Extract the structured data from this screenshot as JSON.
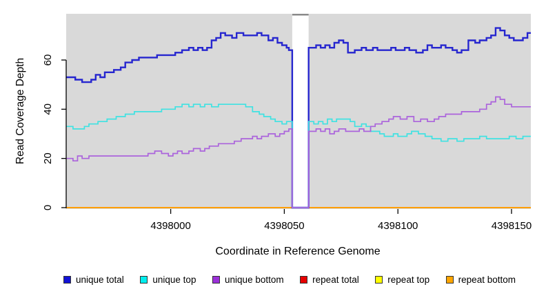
{
  "labels": {
    "ylabel": "Read Coverage Depth",
    "xlabel": "Coordinate in Reference Genome"
  },
  "legend": {
    "items": [
      {
        "label": "unique total",
        "color": "#1212D6"
      },
      {
        "label": "unique top",
        "color": "#00EEEE"
      },
      {
        "label": "unique bottom",
        "color": "#9B30D9"
      },
      {
        "label": "repeat total",
        "color": "#E60000"
      },
      {
        "label": "repeat top",
        "color": "#FFFF00"
      },
      {
        "label": "repeat bottom",
        "color": "#FFA500"
      }
    ]
  },
  "chart_data": {
    "type": "line",
    "subtype": "step-after",
    "title": "",
    "xlabel": "Coordinate in Reference Genome",
    "ylabel": "Read Coverage Depth",
    "xlim": [
      4397954,
      4398158.5
    ],
    "ylim": [
      0,
      79
    ],
    "xticks": [
      "4398000",
      "4398050",
      "4398100",
      "4398150"
    ],
    "xtick_values": [
      4398000,
      4398050,
      4398100,
      4398150
    ],
    "yticks": [
      "0",
      "20",
      "40",
      "60"
    ],
    "ytick_values": [
      0,
      20,
      40,
      60
    ],
    "panel_bg": "#D9D9D9",
    "grid": false,
    "legend_position": "bottom",
    "gap_region": {
      "start": 4398053.5,
      "end": 4398060.7,
      "fill": "#FFFFFF",
      "top_border": "#8A8A8A"
    },
    "series": [
      {
        "name": "repeat total",
        "color": "#DD0000",
        "width": 2,
        "points": [
          [
            4397954,
            0
          ]
        ]
      },
      {
        "name": "repeat top",
        "color": "#FFEE00",
        "width": 2,
        "points": [
          [
            4397954,
            0
          ]
        ]
      },
      {
        "name": "repeat bottom",
        "color": "#FF9E00",
        "width": 2.1,
        "points": [
          [
            4397954,
            0
          ]
        ]
      },
      {
        "name": "unique total",
        "color": "#2626CF",
        "width": 2.4,
        "points": [
          [
            4397954,
            53
          ],
          [
            4397958,
            52
          ],
          [
            4397961,
            51
          ],
          [
            4397965,
            52
          ],
          [
            4397967,
            54
          ],
          [
            4397969,
            53
          ],
          [
            4397971,
            55
          ],
          [
            4397975,
            56
          ],
          [
            4397978,
            57
          ],
          [
            4397980,
            59
          ],
          [
            4397983,
            60
          ],
          [
            4397986,
            61
          ],
          [
            4397994,
            62
          ],
          [
            4398002,
            63
          ],
          [
            4398005,
            64
          ],
          [
            4398008,
            65
          ],
          [
            4398010,
            64
          ],
          [
            4398012,
            65
          ],
          [
            4398014,
            64
          ],
          [
            4398016,
            65
          ],
          [
            4398018,
            68
          ],
          [
            4398020,
            69
          ],
          [
            4398022,
            71
          ],
          [
            4398024,
            70
          ],
          [
            4398027,
            69
          ],
          [
            4398029,
            71
          ],
          [
            4398032,
            70
          ],
          [
            4398038,
            71
          ],
          [
            4398040,
            70
          ],
          [
            4398043,
            68
          ],
          [
            4398045,
            69
          ],
          [
            4398047,
            67
          ],
          [
            4398049,
            66
          ],
          [
            4398051,
            65
          ],
          [
            4398052,
            64
          ],
          [
            4398053.5,
            0
          ],
          [
            4398060.7,
            65
          ],
          [
            4398064,
            66
          ],
          [
            4398066,
            65
          ],
          [
            4398068,
            66
          ],
          [
            4398070,
            65
          ],
          [
            4398072,
            67
          ],
          [
            4398074,
            68
          ],
          [
            4398076,
            67
          ],
          [
            4398078,
            63
          ],
          [
            4398081,
            64
          ],
          [
            4398084,
            65
          ],
          [
            4398086,
            64
          ],
          [
            4398089,
            65
          ],
          [
            4398091,
            64
          ],
          [
            4398097,
            65
          ],
          [
            4398099,
            64
          ],
          [
            4398103,
            65
          ],
          [
            4398105,
            64
          ],
          [
            4398108,
            63
          ],
          [
            4398111,
            64
          ],
          [
            4398113,
            66
          ],
          [
            4398115,
            65
          ],
          [
            4398119,
            66
          ],
          [
            4398121,
            65
          ],
          [
            4398124,
            64
          ],
          [
            4398126,
            63
          ],
          [
            4398128,
            64
          ],
          [
            4398131,
            68
          ],
          [
            4398134,
            67
          ],
          [
            4398136,
            68
          ],
          [
            4398139,
            69
          ],
          [
            4398141,
            70
          ],
          [
            4398143,
            73
          ],
          [
            4398145,
            72
          ],
          [
            4398147,
            70
          ],
          [
            4398149,
            69
          ],
          [
            4398151,
            68
          ],
          [
            4398155,
            69
          ],
          [
            4398157,
            71
          ]
        ]
      },
      {
        "name": "unique top",
        "color": "#3FE2E2",
        "width": 1.7,
        "points": [
          [
            4397954,
            33
          ],
          [
            4397957,
            32
          ],
          [
            4397962,
            33
          ],
          [
            4397964,
            34
          ],
          [
            4397968,
            35
          ],
          [
            4397972,
            36
          ],
          [
            4397976,
            37
          ],
          [
            4397980,
            38
          ],
          [
            4397984,
            39
          ],
          [
            4397996,
            40
          ],
          [
            4398002,
            41
          ],
          [
            4398005,
            42
          ],
          [
            4398008,
            41
          ],
          [
            4398010,
            42
          ],
          [
            4398013,
            41
          ],
          [
            4398015,
            42
          ],
          [
            4398018,
            41
          ],
          [
            4398021,
            42
          ],
          [
            4398033,
            41
          ],
          [
            4398036,
            39
          ],
          [
            4398039,
            38
          ],
          [
            4398041,
            37
          ],
          [
            4398044,
            36
          ],
          [
            4398046,
            35
          ],
          [
            4398049,
            34
          ],
          [
            4398051,
            35
          ],
          [
            4398053.5,
            0
          ],
          [
            4398060.7,
            35
          ],
          [
            4398063,
            34
          ],
          [
            4398065,
            35
          ],
          [
            4398067,
            34
          ],
          [
            4398069,
            36
          ],
          [
            4398071,
            35
          ],
          [
            4398073,
            36
          ],
          [
            4398079,
            35
          ],
          [
            4398081,
            33
          ],
          [
            4398084,
            34
          ],
          [
            4398086,
            33
          ],
          [
            4398088,
            31
          ],
          [
            4398092,
            30
          ],
          [
            4398094,
            29
          ],
          [
            4398098,
            30
          ],
          [
            4398100,
            29
          ],
          [
            4398104,
            30
          ],
          [
            4398106,
            31
          ],
          [
            4398109,
            30
          ],
          [
            4398112,
            29
          ],
          [
            4398115,
            28
          ],
          [
            4398119,
            27
          ],
          [
            4398122,
            28
          ],
          [
            4398126,
            27
          ],
          [
            4398129,
            28
          ],
          [
            4398136,
            29
          ],
          [
            4398139,
            28
          ],
          [
            4398149,
            29
          ],
          [
            4398152,
            28
          ],
          [
            4398155,
            29
          ]
        ]
      },
      {
        "name": "unique bottom",
        "color": "#AB63DC",
        "width": 1.7,
        "points": [
          [
            4397954,
            20
          ],
          [
            4397957,
            19
          ],
          [
            4397959,
            21
          ],
          [
            4397961,
            20
          ],
          [
            4397964,
            21
          ],
          [
            4397990,
            22
          ],
          [
            4397993,
            23
          ],
          [
            4397996,
            22
          ],
          [
            4397999,
            21
          ],
          [
            4398001,
            22
          ],
          [
            4398003,
            23
          ],
          [
            4398005,
            22
          ],
          [
            4398008,
            23
          ],
          [
            4398010,
            24
          ],
          [
            4398013,
            23
          ],
          [
            4398015,
            24
          ],
          [
            4398017,
            25
          ],
          [
            4398021,
            26
          ],
          [
            4398028,
            27
          ],
          [
            4398031,
            28
          ],
          [
            4398036,
            29
          ],
          [
            4398038,
            28
          ],
          [
            4398040,
            29
          ],
          [
            4398043,
            30
          ],
          [
            4398046,
            29
          ],
          [
            4398048,
            30
          ],
          [
            4398050,
            31
          ],
          [
            4398052,
            32
          ],
          [
            4398053.5,
            0
          ],
          [
            4398060.7,
            31
          ],
          [
            4398064,
            32
          ],
          [
            4398066,
            31
          ],
          [
            4398068,
            32
          ],
          [
            4398070,
            30
          ],
          [
            4398072,
            31
          ],
          [
            4398074,
            32
          ],
          [
            4398077,
            31
          ],
          [
            4398083,
            32
          ],
          [
            4398085,
            31
          ],
          [
            4398088,
            33
          ],
          [
            4398090,
            34
          ],
          [
            4398093,
            35
          ],
          [
            4398096,
            36
          ],
          [
            4398098,
            37
          ],
          [
            4398101,
            36
          ],
          [
            4398104,
            37
          ],
          [
            4398107,
            35
          ],
          [
            4398110,
            36
          ],
          [
            4398113,
            35
          ],
          [
            4398116,
            36
          ],
          [
            4398118,
            37
          ],
          [
            4398121,
            38
          ],
          [
            4398128,
            39
          ],
          [
            4398136,
            40
          ],
          [
            4398139,
            42
          ],
          [
            4398141,
            43
          ],
          [
            4398143,
            45
          ],
          [
            4398145,
            44
          ],
          [
            4398147,
            42
          ],
          [
            4398150,
            41
          ]
        ]
      }
    ]
  }
}
